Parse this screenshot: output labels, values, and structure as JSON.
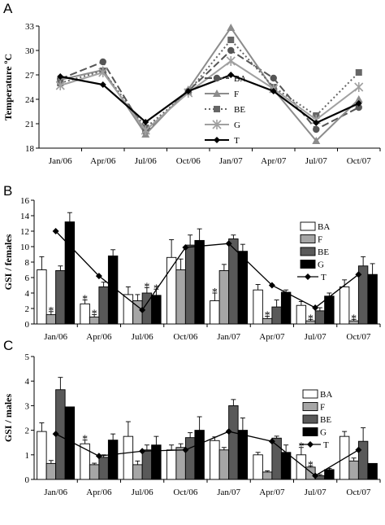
{
  "chart_data": [
    {
      "panel": "A",
      "type": "line",
      "ylabel": "Temperature ºC",
      "ylim": [
        18,
        33
      ],
      "yticks": [
        18,
        21,
        24,
        27,
        30,
        33
      ],
      "categories": [
        "Jan/06",
        "Apr/06",
        "Jul/06",
        "Oct/06",
        "Jan/07",
        "Apr/07",
        "Jul/07",
        "Oct/07"
      ],
      "legend_position": "center",
      "series": [
        {
          "name": "BA",
          "color": "#555555",
          "dash": "9,4",
          "marker": "circle",
          "values": [
            26.5,
            28.6,
            20.0,
            25.0,
            30.0,
            26.6,
            20.3,
            23.0
          ]
        },
        {
          "name": "F",
          "color": "#8c8c8c",
          "dash": "",
          "marker": "triangle",
          "values": [
            26.4,
            27.6,
            19.7,
            25.2,
            32.8,
            25.2,
            18.9,
            24.0
          ]
        },
        {
          "name": "BE",
          "color": "#666666",
          "dash": "2,3",
          "marker": "square",
          "values": [
            26.0,
            27.5,
            20.5,
            24.9,
            31.3,
            25.5,
            22.0,
            27.3
          ]
        },
        {
          "name": "G",
          "color": "#a0a0a0",
          "dash": "",
          "marker": "x",
          "values": [
            25.7,
            27.3,
            20.2,
            24.8,
            28.7,
            25.3,
            21.5,
            25.5
          ]
        },
        {
          "name": "T",
          "color": "#000000",
          "dash": "",
          "marker": "diamond",
          "values": [
            26.8,
            25.8,
            21.2,
            25.0,
            27.0,
            25.0,
            21.1,
            23.5
          ]
        }
      ]
    },
    {
      "panel": "B",
      "type": "bar",
      "ylabel": "GSI / females",
      "ylim": [
        0,
        16
      ],
      "yticks": [
        0,
        2,
        4,
        6,
        8,
        10,
        12,
        14,
        16
      ],
      "categories": [
        "Jan/06",
        "Apr/06",
        "Jul/06",
        "Oct/06",
        "Jan/07",
        "Apr/07",
        "Jul/07",
        "Oct/07"
      ],
      "legend_position": "right",
      "series": [
        {
          "name": "BA",
          "fill": "#ffffff",
          "values": [
            7.0,
            2.6,
            3.8,
            8.6,
            3.0,
            4.4,
            2.4,
            4.8
          ],
          "errors": [
            1.7,
            0.5,
            1.0,
            2.3,
            1.0,
            0.7,
            0.5,
            0.9
          ],
          "starred": [
            false,
            true,
            false,
            false,
            true,
            false,
            false,
            false
          ]
        },
        {
          "name": "F",
          "fill": "#a6a6a6",
          "values": [
            1.2,
            0.9,
            3.0,
            7.0,
            6.9,
            0.7,
            0.4,
            0.4
          ],
          "errors": [
            0.4,
            0.3,
            0.8,
            1.4,
            0.8,
            0.3,
            0.2,
            0.2
          ],
          "starred": [
            true,
            true,
            false,
            false,
            false,
            true,
            true,
            true
          ]
        },
        {
          "name": "BE",
          "fill": "#595959",
          "values": [
            6.9,
            4.8,
            4.0,
            10.2,
            11.0,
            2.2,
            1.7,
            7.5
          ],
          "errors": [
            0.6,
            0.6,
            0.7,
            1.3,
            0.5,
            0.9,
            0.4,
            1.2
          ],
          "starred": [
            false,
            false,
            true,
            false,
            false,
            false,
            false,
            false
          ]
        },
        {
          "name": "G",
          "fill": "#000000",
          "values": [
            13.2,
            8.8,
            3.7,
            10.8,
            9.4,
            4.1,
            3.6,
            6.4
          ],
          "errors": [
            1.2,
            0.8,
            0.8,
            1.5,
            0.9,
            0.3,
            0.4,
            1.4
          ],
          "starred": [
            false,
            false,
            true,
            false,
            false,
            false,
            false,
            false
          ]
        }
      ],
      "line_series": {
        "name": "T",
        "color": "#000000",
        "marker": "diamond",
        "values": [
          12.0,
          6.2,
          1.8,
          9.9,
          10.4,
          5.0,
          2.1,
          6.4
        ]
      }
    },
    {
      "panel": "C",
      "type": "bar",
      "ylabel": "GSI / males",
      "ylim": [
        0,
        5
      ],
      "yticks": [
        0,
        1,
        2,
        3,
        4,
        5
      ],
      "categories": [
        "Jan/06",
        "Apr/06",
        "Jul/06",
        "Oct/06",
        "Jan/07",
        "Apr/07",
        "Jul/07",
        "Oct/07"
      ],
      "legend_position": "top-right",
      "series": [
        {
          "name": "BA",
          "fill": "#ffffff",
          "values": [
            1.95,
            1.45,
            1.75,
            1.2,
            1.58,
            1.0,
            1.0,
            1.75
          ],
          "errors": [
            0.35,
            0.15,
            0.6,
            0.2,
            0.15,
            0.1,
            0.3,
            0.2
          ],
          "starred": [
            false,
            true,
            false,
            false,
            false,
            false,
            true,
            false
          ]
        },
        {
          "name": "F",
          "fill": "#a6a6a6",
          "values": [
            0.65,
            0.6,
            0.6,
            1.3,
            1.2,
            0.3,
            0.5,
            0.75
          ],
          "errors": [
            0.12,
            0.06,
            0.15,
            0.15,
            0.1,
            0.05,
            0.05,
            0.12
          ],
          "starred": [
            false,
            false,
            false,
            false,
            false,
            false,
            true,
            false
          ]
        },
        {
          "name": "BE",
          "fill": "#595959",
          "values": [
            3.65,
            0.9,
            1.2,
            1.7,
            3.0,
            1.68,
            0.15,
            1.55
          ],
          "errors": [
            0.5,
            0.1,
            0.2,
            0.2,
            0.25,
            0.08,
            0.05,
            0.55
          ],
          "starred": [
            false,
            false,
            false,
            false,
            false,
            false,
            false,
            false
          ]
        },
        {
          "name": "G",
          "fill": "#000000",
          "values": [
            2.95,
            1.6,
            1.4,
            2.0,
            2.0,
            1.1,
            0.4,
            0.65
          ],
          "errors": [
            0.0,
            0.25,
            0.35,
            0.55,
            0.5,
            0.3,
            0.05,
            0.0
          ],
          "starred": [
            false,
            false,
            false,
            false,
            false,
            false,
            false,
            false
          ]
        }
      ],
      "line_series": {
        "name": "T",
        "color": "#000000",
        "marker": "diamond",
        "values": [
          1.85,
          0.95,
          1.15,
          1.2,
          1.95,
          1.55,
          0.15,
          1.2
        ]
      }
    }
  ]
}
